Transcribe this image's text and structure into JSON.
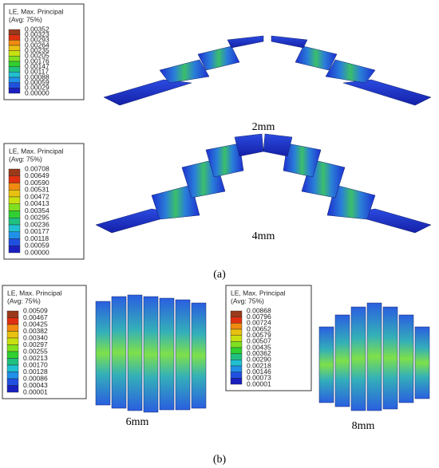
{
  "panel_a": {
    "label": "(a)",
    "captions": [
      "2mm",
      "4mm"
    ],
    "legends": [
      {
        "title": "LE, Max. Principal",
        "subtitle": "(Avg: 75%)",
        "values": [
          "0.00352",
          "0.00323",
          "0.00293",
          "0.00264",
          "0.00235",
          "0.00205",
          "0.00176",
          "0.00147",
          "0.00117",
          "0.00088",
          "0.00059",
          "0.00029",
          "0.00000"
        ]
      },
      {
        "title": "LE, Max. Principal",
        "subtitle": "(Avg: 75%)",
        "values": [
          "0.00708",
          "0.00649",
          "0.00590",
          "0.00531",
          "0.00472",
          "0.00413",
          "0.00354",
          "0.00295",
          "0.00236",
          "0.00177",
          "0.00118",
          "0.00059",
          "0.00000"
        ]
      }
    ]
  },
  "panel_b": {
    "label": "(b)",
    "captions": [
      "6mm",
      "8mm"
    ],
    "legends": [
      {
        "title": "LE, Max. Principal",
        "subtitle": "(Avg: 75%)",
        "values": [
          "0.00509",
          "0.00467",
          "0.00425",
          "0.00382",
          "0.00340",
          "0.00297",
          "0.00255",
          "0.00213",
          "0.00170",
          "0.00128",
          "0.00086",
          "0.00043",
          "0.00001"
        ]
      },
      {
        "title": "LE, Max. Principal",
        "subtitle": "(Avg: 75%)",
        "values": [
          "0.00868",
          "0.00796",
          "0.00724",
          "0.00652",
          "0.00579",
          "0.00507",
          "0.00435",
          "0.00362",
          "0.00290",
          "0.00218",
          "0.00146",
          "0.00073",
          "0.00001"
        ]
      }
    ]
  }
}
